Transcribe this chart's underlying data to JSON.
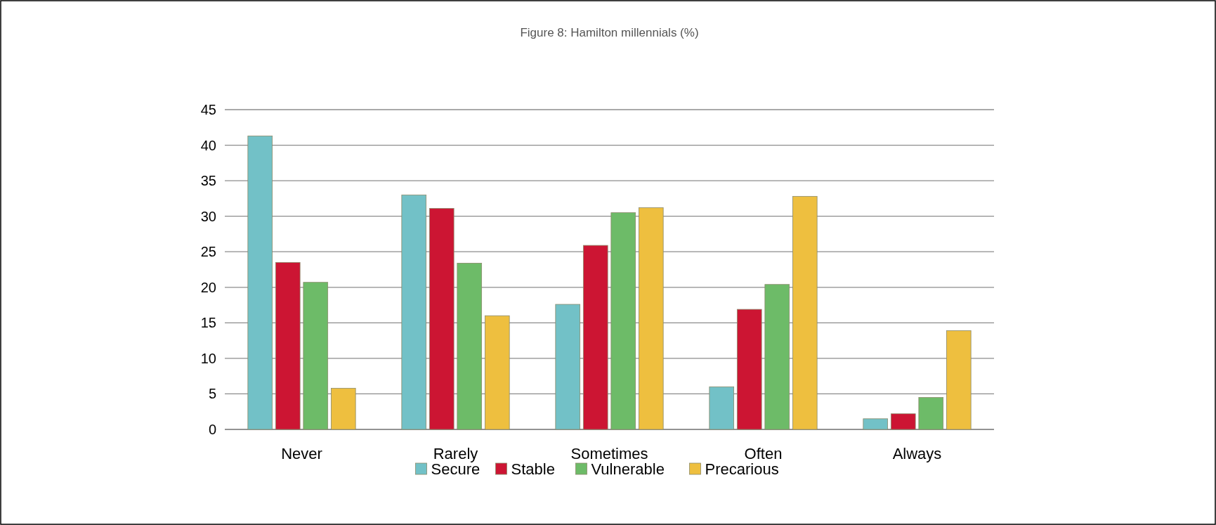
{
  "chart_data": {
    "type": "bar",
    "title": "Figure 8: Hamilton millennials (%)",
    "categories": [
      "Never",
      "Rarely",
      "Sometimes",
      "Often",
      "Always"
    ],
    "series": [
      {
        "name": "Secure",
        "color": "#72c1c7",
        "values": [
          41.3,
          33.0,
          17.6,
          6.0,
          1.5
        ]
      },
      {
        "name": "Stable",
        "color": "#cc1533",
        "values": [
          23.5,
          31.1,
          25.9,
          16.9,
          2.2
        ]
      },
      {
        "name": "Vulnerable",
        "color": "#6dbb68",
        "values": [
          20.7,
          23.4,
          30.5,
          20.4,
          4.5
        ]
      },
      {
        "name": "Precarious",
        "color": "#eebf3f",
        "values": [
          5.8,
          16.0,
          31.2,
          32.8,
          13.9
        ]
      }
    ],
    "ylim": [
      0,
      45
    ],
    "yticks": [
      0,
      5,
      10,
      15,
      20,
      25,
      30,
      35,
      40,
      45
    ],
    "grid": "y",
    "legend": "bottom"
  }
}
